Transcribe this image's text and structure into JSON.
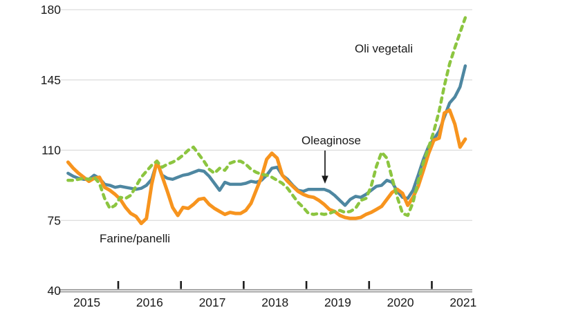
{
  "chart_data": {
    "type": "line",
    "title": "",
    "xlabel": "",
    "ylabel": "",
    "ylim": [
      40,
      180
    ],
    "grid": "horizontal",
    "legend": "inline-annotations",
    "y_ticks": [
      40,
      75,
      110,
      145,
      180
    ],
    "x_year_labels": [
      "2015",
      "2016",
      "2017",
      "2018",
      "2019",
      "2020",
      "2021"
    ],
    "x_boundary_tick_years": [
      2016,
      2017,
      2018,
      2019,
      2020,
      2021
    ],
    "x_start_year": 2015.2,
    "frequency_per_year": 12,
    "annotations": {
      "oli_vegetali": "Oli vegetali",
      "oleaginose": "Oleaginose",
      "farine_panelli": "Farine/panelli"
    },
    "colors": {
      "oli_vegetali": "#8CC540",
      "oleaginose": "#4E87A1",
      "farine_panelli": "#F7941E",
      "grid": "#DCDCDC",
      "axis": "#8C8C8C",
      "text": "#1a1a1a"
    },
    "series": [
      {
        "name": "Oleaginose",
        "key": "oleaginose",
        "style": "solid",
        "width": 4.5,
        "values": [
          98.5,
          97,
          96,
          95.5,
          95.5,
          97.5,
          96,
          93,
          92.5,
          91.5,
          92,
          91.5,
          91,
          90.5,
          91,
          92.5,
          95.5,
          104,
          97.5,
          96,
          95.5,
          96.5,
          97.5,
          98,
          99,
          100,
          99.5,
          97,
          93.5,
          90,
          94,
          93,
          93,
          93,
          93.5,
          94.5,
          94,
          95,
          97.5,
          101,
          101.5,
          97.5,
          95.5,
          92.5,
          90,
          89.5,
          90.5,
          90.5,
          90.5,
          90.5,
          89.5,
          87.5,
          85,
          82.5,
          85.5,
          87,
          86.5,
          88,
          90,
          92,
          92.5,
          95,
          94,
          89.5,
          86.5,
          86,
          90,
          97.5,
          105.5,
          112,
          115.5,
          119.5,
          126.5,
          133.5,
          136.5,
          141.5,
          152
        ]
      },
      {
        "name": "Farine/panelli",
        "key": "farine_panelli",
        "style": "solid",
        "width": 5,
        "values": [
          104,
          101,
          98.5,
          96.5,
          94.5,
          96,
          96.5,
          91.5,
          90,
          88,
          85.5,
          81.5,
          78.5,
          77,
          73.5,
          76,
          93,
          104.5,
          97,
          89.5,
          81.5,
          77.5,
          81.5,
          81,
          83,
          85.5,
          86,
          83,
          81,
          79.5,
          78,
          79,
          78.5,
          78.5,
          80,
          83.5,
          90,
          96.5,
          105.5,
          108.5,
          106,
          97.5,
          94.5,
          92,
          89.5,
          88,
          87,
          86.5,
          85,
          83,
          80.5,
          79.5,
          77.5,
          76.5,
          76,
          76,
          76.5,
          78,
          79,
          80.5,
          82,
          85.5,
          89,
          90.5,
          88.5,
          82.5,
          86.5,
          92,
          100,
          108.5,
          115,
          116,
          128.5,
          130,
          123,
          111.5,
          115.5
        ]
      },
      {
        "name": "Oli vegetali",
        "key": "oli_vegetali",
        "style": "dashed",
        "width": 4.5,
        "values": [
          95,
          95,
          95.5,
          96,
          95.5,
          96.5,
          93.5,
          86,
          81,
          82.5,
          86.5,
          86,
          87.5,
          92,
          96.5,
          99.5,
          102.5,
          104.5,
          101.5,
          103,
          104,
          105.5,
          107.5,
          110,
          111.5,
          108,
          104.5,
          100.5,
          98.5,
          101,
          100,
          103.5,
          104.5,
          104.5,
          103,
          100.5,
          99,
          98,
          97.5,
          96.5,
          95,
          93.5,
          91,
          87.5,
          84,
          81.5,
          78.5,
          78,
          78.5,
          78,
          78.5,
          79.5,
          80,
          79,
          79.5,
          81,
          85,
          86,
          92,
          102,
          109,
          106,
          96,
          86.5,
          78.5,
          77.5,
          84,
          94.5,
          104,
          111.5,
          119.5,
          129.5,
          142,
          153,
          161,
          168.5,
          176
        ]
      }
    ]
  }
}
